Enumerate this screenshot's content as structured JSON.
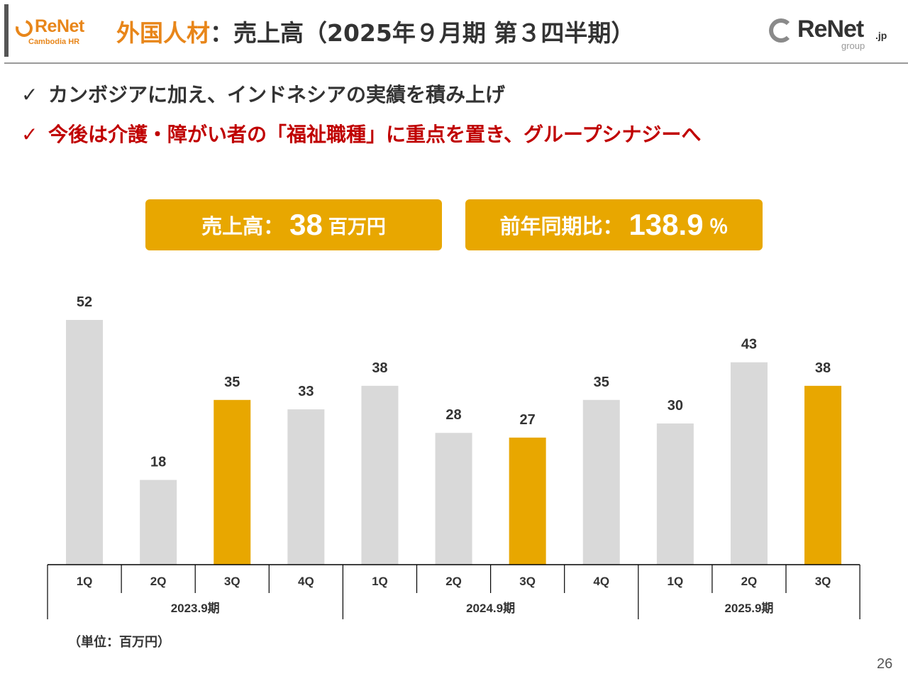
{
  "header": {
    "logo_left_name": "ReNet",
    "logo_left_sub": "Cambodia HR",
    "title_highlight": "外国人材",
    "title_rest": "：売上高（2025年９月期 第３四半期）",
    "logo_right_name": "ReNet",
    "logo_right_jp": ".jp",
    "logo_right_group": "group"
  },
  "bullets": [
    {
      "check": "✓",
      "text": "カンボジアに加え、インドネシアの実績を積み上げ",
      "color": "#333333"
    },
    {
      "check": "✓",
      "text": "今後は介護・障がい者の「福祉職種」に重点を置き、グループシナジーへ",
      "color": "#c00000"
    }
  ],
  "kpis": [
    {
      "label": "売上高：",
      "value": "38",
      "unit": "百万円"
    },
    {
      "label": "前年同期比：",
      "value": "138.9",
      "unit": "％"
    }
  ],
  "colors": {
    "highlight": "#e8a700",
    "base_bar": "#d9d9d9",
    "brand_orange": "#e8861a",
    "emphasis_red": "#c00000"
  },
  "chart_data": {
    "type": "bar",
    "categories": [
      "1Q",
      "2Q",
      "3Q",
      "4Q",
      "1Q",
      "2Q",
      "3Q",
      "4Q",
      "1Q",
      "2Q",
      "3Q"
    ],
    "groups": [
      {
        "label": "2023.9期",
        "count": 4
      },
      {
        "label": "2024.9期",
        "count": 4
      },
      {
        "label": "2025.9期",
        "count": 3
      }
    ],
    "values": [
      52,
      18,
      35,
      33,
      38,
      28,
      27,
      35,
      30,
      43,
      38
    ],
    "highlighted": [
      false,
      false,
      true,
      false,
      false,
      false,
      true,
      false,
      false,
      false,
      true
    ],
    "ylim": [
      0,
      52
    ],
    "grid": false,
    "legend": "none",
    "unit_note": "（単位：百万円）"
  },
  "footer": {
    "page_number": "26"
  }
}
